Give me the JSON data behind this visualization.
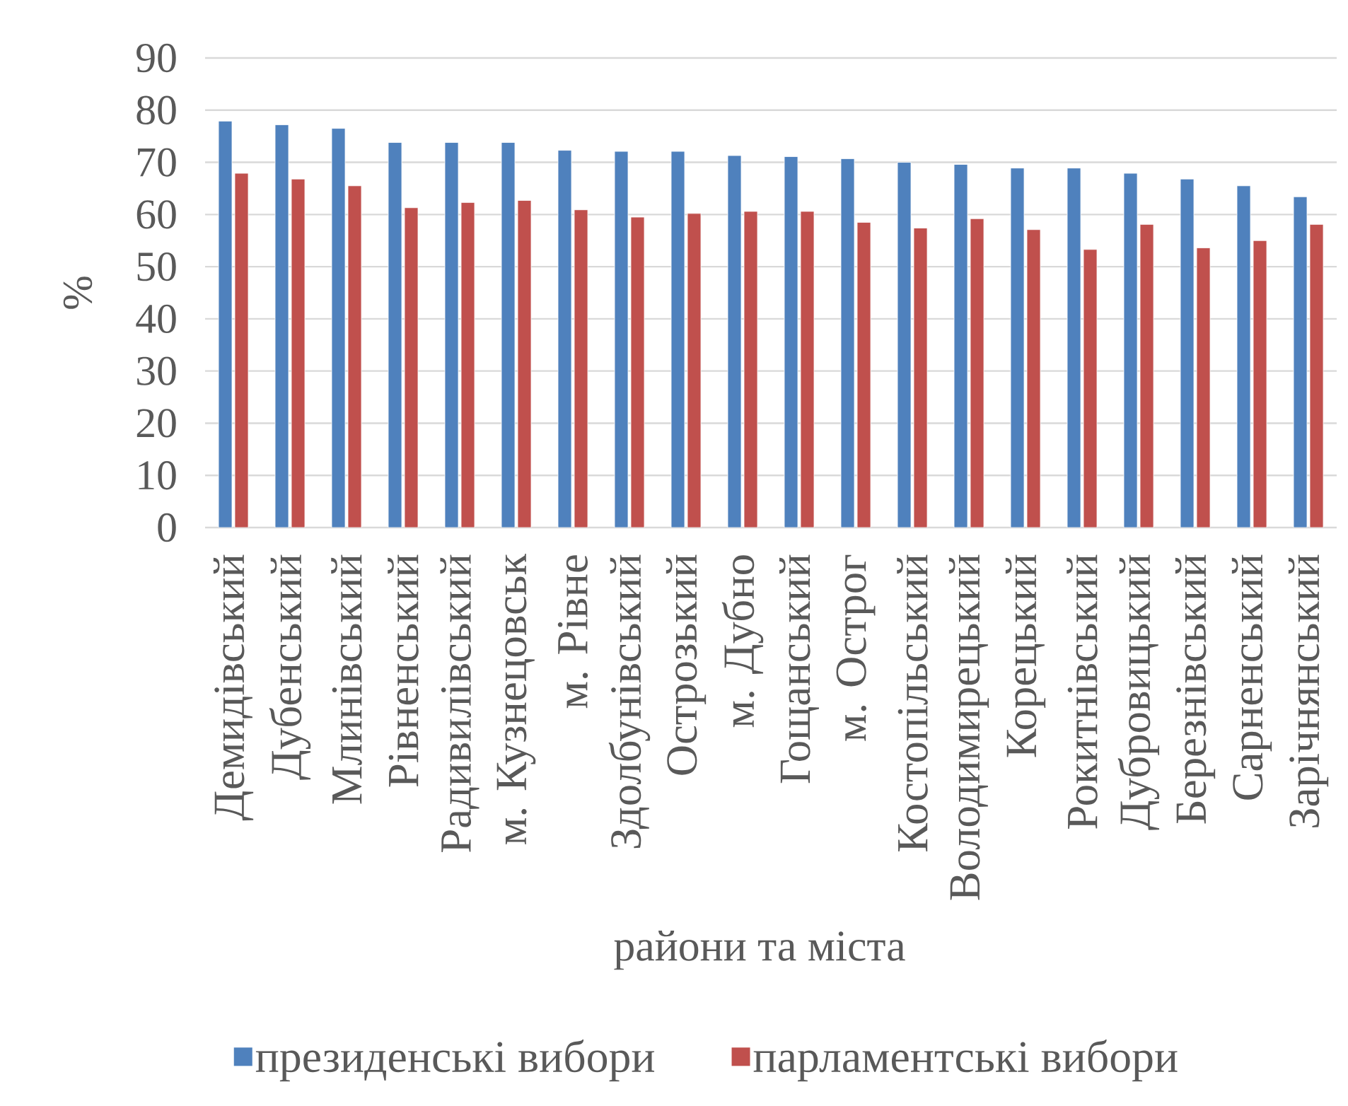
{
  "chart_data": {
    "type": "bar",
    "xlabel": "райони та міста",
    "ylabel": "%",
    "categories": [
      "Демидівський",
      "Дубенський",
      "Млинівський",
      "Рівненський",
      "Радивилівський",
      "м. Кузнецовськ",
      "м. Рівне",
      "Здолбунівський",
      "Острозький",
      "м. Дубно",
      "Гощанський",
      "м. Острог",
      "Костопільський",
      "Володимирецький",
      "Корецький",
      "Рокитнівський",
      "Дубровицький",
      "Березнівський",
      "Сарненський",
      "Зарічнянський"
    ],
    "series": [
      {
        "name": "президенські вибори",
        "color": "#4f81bd",
        "values": [
          77.9,
          77.2,
          76.5,
          73.8,
          73.8,
          73.8,
          72.3,
          72.1,
          72.1,
          71.3,
          71.1,
          70.7,
          70.0,
          69.6,
          68.9,
          68.9,
          67.9,
          66.8,
          65.5,
          63.4
        ]
      },
      {
        "name": "парламентські вибори",
        "color": "#c0504d",
        "values": [
          67.9,
          66.8,
          65.5,
          61.3,
          62.3,
          62.7,
          60.9,
          59.5,
          60.2,
          60.6,
          60.6,
          58.5,
          57.4,
          59.2,
          57.1,
          53.3,
          58.1,
          53.6,
          55.0,
          58.1
        ]
      }
    ],
    "ylim": [
      0,
      90
    ],
    "yticks": [
      0,
      10,
      20,
      30,
      40,
      50,
      60,
      70,
      80,
      90
    ],
    "grid": "y",
    "legend": "bottom"
  }
}
